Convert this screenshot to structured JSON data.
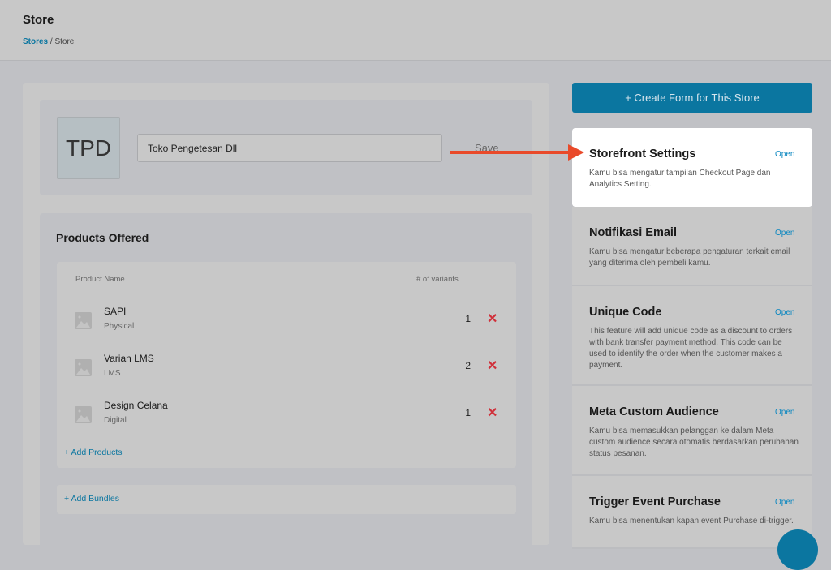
{
  "header": {
    "title": "Store",
    "breadcrumb": {
      "parent": "Stores",
      "separator": " / ",
      "current": "Store"
    }
  },
  "store": {
    "initials": "TPD",
    "name_value": "Toko Pengetesan Dll",
    "save_label": "Save"
  },
  "products": {
    "title": "Products Offered",
    "columns": {
      "name": "Product Name",
      "variants": "# of variants"
    },
    "rows": [
      {
        "name": "SAPI",
        "type": "Physical",
        "variants": "1"
      },
      {
        "name": "Varian LMS",
        "type": "LMS",
        "variants": "2"
      },
      {
        "name": "Design Celana",
        "type": "Digital",
        "variants": "1"
      }
    ],
    "add_products": "+ Add Products",
    "add_bundles": "+ Add Bundles"
  },
  "sidebar": {
    "create_form": "+ Create Form for This Store",
    "cards": [
      {
        "title": "Storefront Settings",
        "open": "Open",
        "desc": "Kamu bisa mengatur tampilan Checkout Page dan Analytics Setting."
      },
      {
        "title": "Notifikasi Email",
        "open": "Open",
        "desc": "Kamu bisa mengatur beberapa pengaturan terkait email yang diterima oleh pembeli kamu."
      },
      {
        "title": "Unique Code",
        "open": "Open",
        "desc": "This feature will add unique code as a discount to orders with bank transfer payment method. This code can be used to identify the order when the customer makes a payment."
      },
      {
        "title": "Meta Custom Audience",
        "open": "Open",
        "desc": "Kamu bisa memasukkan pelanggan ke dalam Meta custom audience secara otomatis berdasarkan perubahan status pesanan."
      },
      {
        "title": "Trigger Event Purchase",
        "open": "Open",
        "desc": "Kamu bisa menentukan kapan event Purchase di-trigger."
      }
    ]
  },
  "colors": {
    "accent": "#0b76a0",
    "delete": "#d0303a",
    "annotation_arrow": "#e94a2a"
  }
}
